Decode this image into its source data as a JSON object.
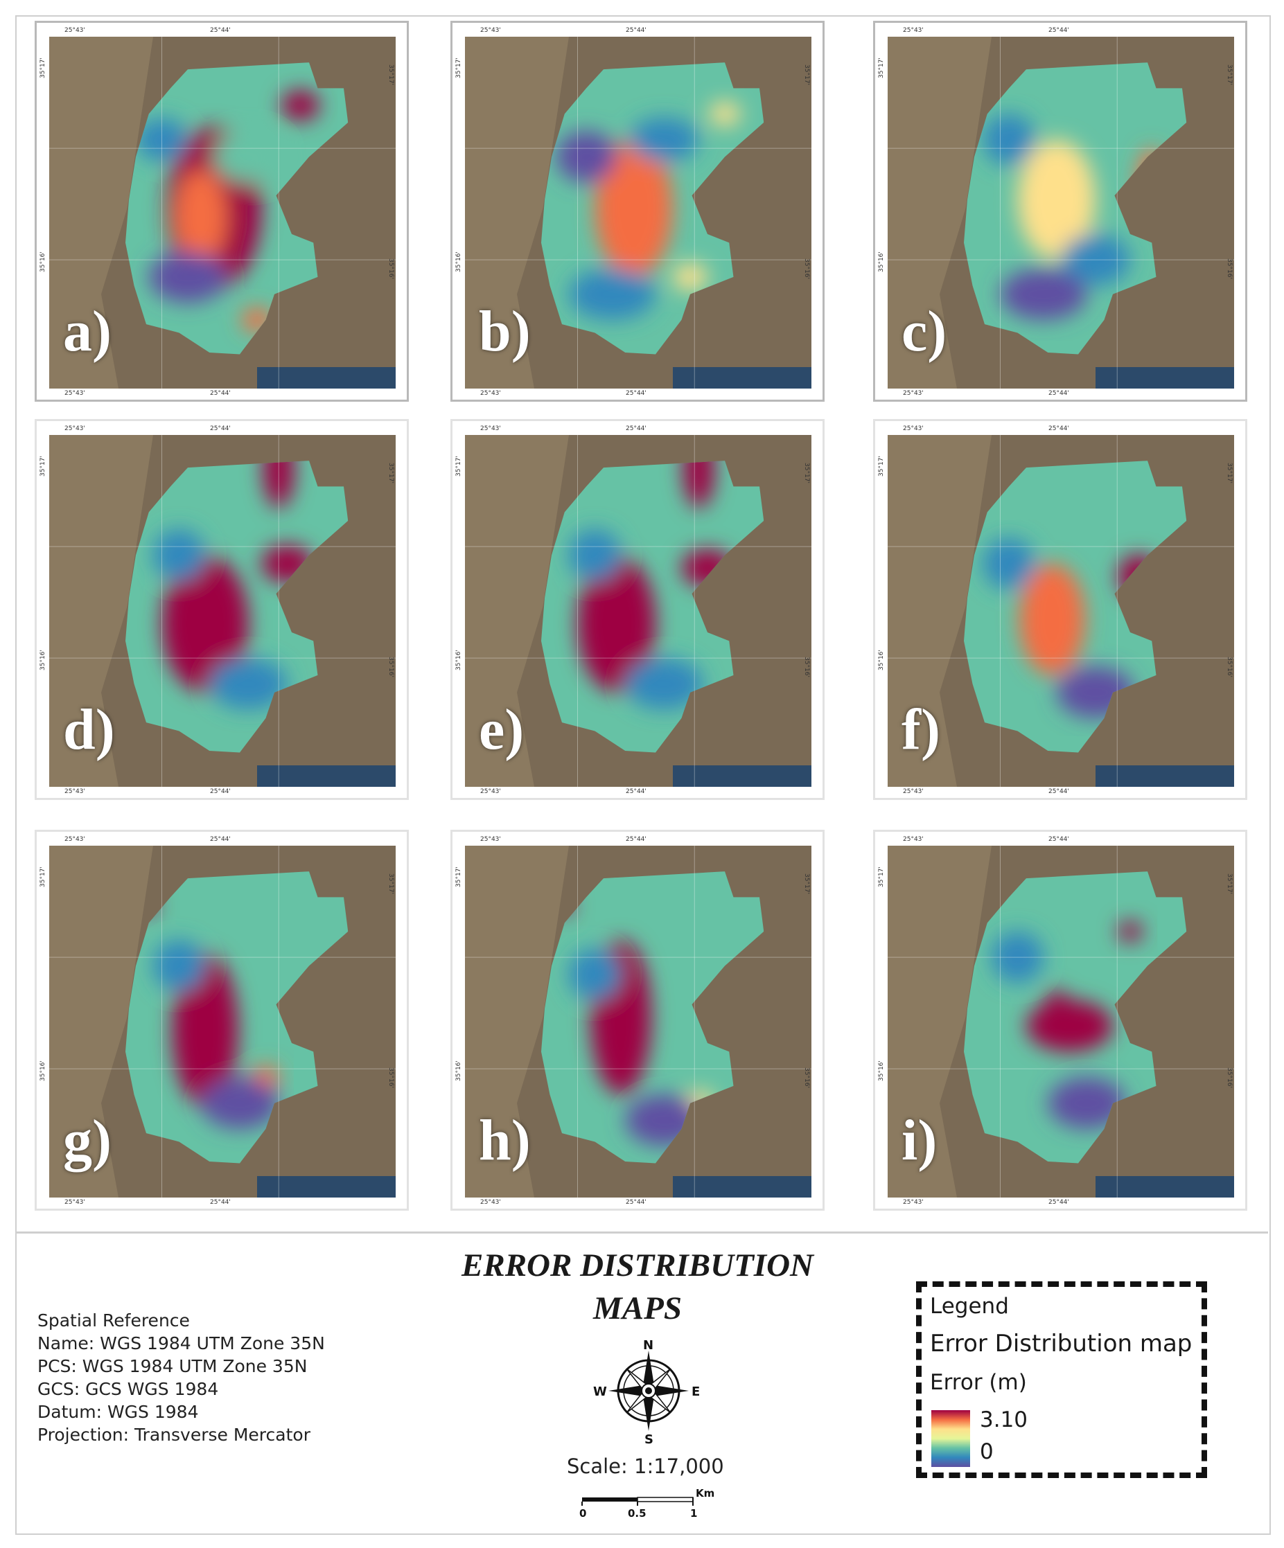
{
  "title": [
    "ERROR DISTRIBUTION",
    "MAPS"
  ],
  "panels": [
    {
      "label": "a)"
    },
    {
      "label": "b)"
    },
    {
      "label": "c)"
    },
    {
      "label": "d)"
    },
    {
      "label": "e)"
    },
    {
      "label": "f)"
    },
    {
      "label": "g)"
    },
    {
      "label": "h)"
    },
    {
      "label": "i)"
    }
  ],
  "graticule": {
    "lon_left": "25°43'",
    "lon_right": "25°44'",
    "lat_top": "35°17'",
    "lat_bottom": "35°16'"
  },
  "spatial_reference": {
    "heading": "Spatial Reference",
    "name": "Name: WGS 1984 UTM Zone 35N",
    "pcs": "PCS: WGS 1984 UTM Zone 35N",
    "gcs": "GCS: GCS WGS 1984",
    "datum": "Datum: WGS 1984",
    "projection": "Projection: Transverse Mercator"
  },
  "north_arrow": {
    "n": "N",
    "s": "S",
    "e": "E",
    "w": "W"
  },
  "scale": {
    "text": "Scale: 1:17,000",
    "ticks": [
      "0",
      "0.5",
      "1"
    ],
    "unit": "Km"
  },
  "legend": {
    "title": "Legend",
    "layer": "Error Distribution map",
    "field": "Error (m)",
    "max": "3.10",
    "min": "0"
  },
  "colors": {
    "ramp": [
      "#9e0142",
      "#f46d43",
      "#fee08b",
      "#e6f598",
      "#66c2a5",
      "#3288bd",
      "#5e4fa2"
    ],
    "land": "#7a6a55"
  }
}
